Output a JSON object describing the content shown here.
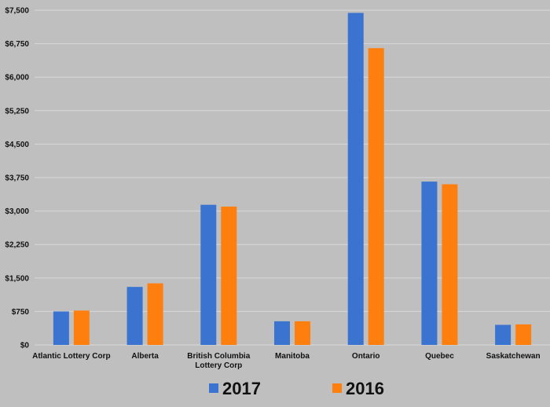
{
  "chart_data": {
    "type": "bar",
    "categories": [
      [
        "Atlantic Lottery Corp"
      ],
      [
        "Alberta"
      ],
      [
        "British Columbia",
        "Lottery Corp"
      ],
      [
        "Manitoba"
      ],
      [
        "Ontario"
      ],
      [
        "Quebec"
      ],
      [
        "Saskatchewan"
      ]
    ],
    "series": [
      {
        "name": "2017",
        "color": "#3a74d0",
        "values": [
          750,
          1300,
          3140,
          530,
          7440,
          3660,
          450
        ]
      },
      {
        "name": "2016",
        "color": "#ff7f0e",
        "values": [
          770,
          1380,
          3100,
          530,
          6650,
          3600,
          460
        ]
      }
    ],
    "ylim": [
      0,
      7500
    ],
    "yticks": [
      0,
      750,
      1500,
      2250,
      3000,
      3750,
      4500,
      5250,
      6000,
      6750,
      7500
    ],
    "ytick_labels": [
      "$0",
      "$750",
      "$1,500",
      "$2,250",
      "$3,000",
      "$3,750",
      "$4,500",
      "$5,250",
      "$6,000",
      "$6,750",
      "$7,500"
    ],
    "grid": true,
    "legend_position": "bottom",
    "background": "#bfbfbf",
    "grid_color": "#d9d9d9"
  }
}
